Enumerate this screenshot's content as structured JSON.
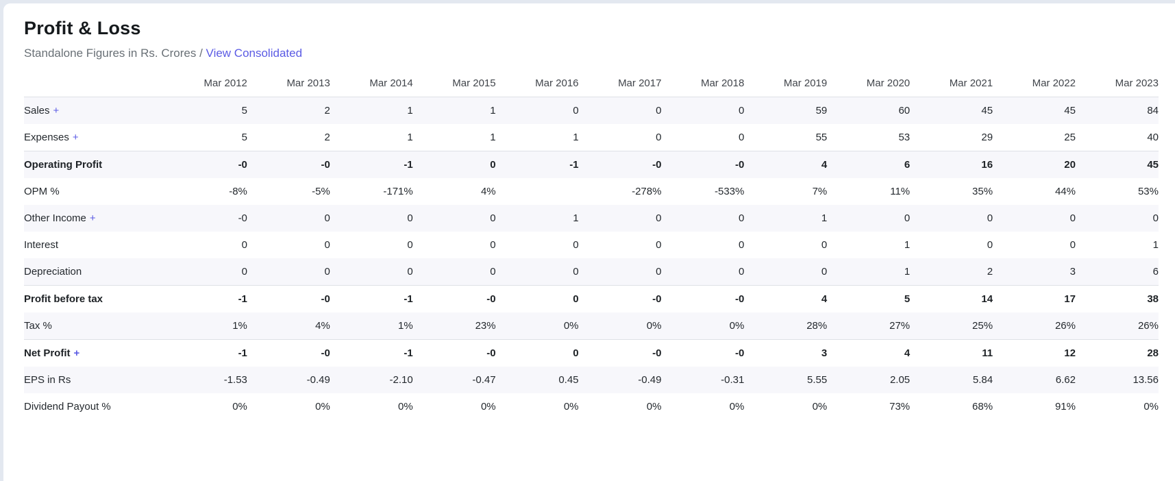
{
  "page": {
    "title": "Profit & Loss",
    "subtitle": "Standalone Figures in Rs. Crores /",
    "link_label": "View Consolidated"
  },
  "colors": {
    "accent_link": "#5b5be4",
    "card_background": "#ffffff",
    "page_background": "#e3e8f0",
    "row_stripe": "#f7f7fb",
    "border": "#dee1e6",
    "title_text": "#161a1d",
    "body_text": "#24292e",
    "subtitle_text": "#697076"
  },
  "table": {
    "expand_symbol": "+",
    "columns": [
      "Mar 2012",
      "Mar 2013",
      "Mar 2014",
      "Mar 2015",
      "Mar 2016",
      "Mar 2017",
      "Mar 2018",
      "Mar 2019",
      "Mar 2020",
      "Mar 2021",
      "Mar 2022",
      "Mar 2023"
    ],
    "rows": [
      {
        "label": "Sales",
        "expandable": true,
        "strong": false,
        "values": [
          "5",
          "2",
          "1",
          "1",
          "0",
          "0",
          "0",
          "59",
          "60",
          "45",
          "45",
          "84"
        ]
      },
      {
        "label": "Expenses",
        "expandable": true,
        "strong": false,
        "values": [
          "5",
          "2",
          "1",
          "1",
          "1",
          "0",
          "0",
          "55",
          "53",
          "29",
          "25",
          "40"
        ]
      },
      {
        "label": "Operating Profit",
        "expandable": false,
        "strong": true,
        "values": [
          "-0",
          "-0",
          "-1",
          "0",
          "-1",
          "-0",
          "-0",
          "4",
          "6",
          "16",
          "20",
          "45"
        ]
      },
      {
        "label": "OPM %",
        "expandable": false,
        "strong": false,
        "values": [
          "-8%",
          "-5%",
          "-171%",
          "4%",
          "",
          "-278%",
          "-533%",
          "7%",
          "11%",
          "35%",
          "44%",
          "53%"
        ]
      },
      {
        "label": "Other Income",
        "expandable": true,
        "strong": false,
        "values": [
          "-0",
          "0",
          "0",
          "0",
          "1",
          "0",
          "0",
          "1",
          "0",
          "0",
          "0",
          "0"
        ]
      },
      {
        "label": "Interest",
        "expandable": false,
        "strong": false,
        "values": [
          "0",
          "0",
          "0",
          "0",
          "0",
          "0",
          "0",
          "0",
          "1",
          "0",
          "0",
          "1"
        ]
      },
      {
        "label": "Depreciation",
        "expandable": false,
        "strong": false,
        "values": [
          "0",
          "0",
          "0",
          "0",
          "0",
          "0",
          "0",
          "0",
          "1",
          "2",
          "3",
          "6"
        ]
      },
      {
        "label": "Profit before tax",
        "expandable": false,
        "strong": true,
        "values": [
          "-1",
          "-0",
          "-1",
          "-0",
          "0",
          "-0",
          "-0",
          "4",
          "5",
          "14",
          "17",
          "38"
        ]
      },
      {
        "label": "Tax %",
        "expandable": false,
        "strong": false,
        "values": [
          "1%",
          "4%",
          "1%",
          "23%",
          "0%",
          "0%",
          "0%",
          "28%",
          "27%",
          "25%",
          "26%",
          "26%"
        ]
      },
      {
        "label": "Net Profit",
        "expandable": true,
        "strong": true,
        "values": [
          "-1",
          "-0",
          "-1",
          "-0",
          "0",
          "-0",
          "-0",
          "3",
          "4",
          "11",
          "12",
          "28"
        ]
      },
      {
        "label": "EPS in Rs",
        "expandable": false,
        "strong": false,
        "values": [
          "-1.53",
          "-0.49",
          "-2.10",
          "-0.47",
          "0.45",
          "-0.49",
          "-0.31",
          "5.55",
          "2.05",
          "5.84",
          "6.62",
          "13.56"
        ]
      },
      {
        "label": "Dividend Payout %",
        "expandable": false,
        "strong": false,
        "values": [
          "0%",
          "0%",
          "0%",
          "0%",
          "0%",
          "0%",
          "0%",
          "0%",
          "73%",
          "68%",
          "91%",
          "0%"
        ]
      }
    ]
  },
  "chart_data": {
    "type": "table",
    "title": "Profit & Loss",
    "categories": [
      "Mar 2012",
      "Mar 2013",
      "Mar 2014",
      "Mar 2015",
      "Mar 2016",
      "Mar 2017",
      "Mar 2018",
      "Mar 2019",
      "Mar 2020",
      "Mar 2021",
      "Mar 2022",
      "Mar 2023"
    ],
    "series": [
      {
        "name": "Sales",
        "values": [
          5,
          2,
          1,
          1,
          0,
          0,
          0,
          59,
          60,
          45,
          45,
          84
        ]
      },
      {
        "name": "Expenses",
        "values": [
          5,
          2,
          1,
          1,
          1,
          0,
          0,
          55,
          53,
          29,
          25,
          40
        ]
      },
      {
        "name": "Operating Profit",
        "values": [
          0,
          0,
          -1,
          0,
          -1,
          0,
          0,
          4,
          6,
          16,
          20,
          45
        ]
      },
      {
        "name": "OPM %",
        "values": [
          -8,
          -5,
          -171,
          4,
          null,
          -278,
          -533,
          7,
          11,
          35,
          44,
          53
        ]
      },
      {
        "name": "Other Income",
        "values": [
          0,
          0,
          0,
          0,
          1,
          0,
          0,
          1,
          0,
          0,
          0,
          0
        ]
      },
      {
        "name": "Interest",
        "values": [
          0,
          0,
          0,
          0,
          0,
          0,
          0,
          0,
          1,
          0,
          0,
          1
        ]
      },
      {
        "name": "Depreciation",
        "values": [
          0,
          0,
          0,
          0,
          0,
          0,
          0,
          0,
          1,
          2,
          3,
          6
        ]
      },
      {
        "name": "Profit before tax",
        "values": [
          -1,
          0,
          -1,
          0,
          0,
          0,
          0,
          4,
          5,
          14,
          17,
          38
        ]
      },
      {
        "name": "Tax %",
        "values": [
          1,
          4,
          1,
          23,
          0,
          0,
          0,
          28,
          27,
          25,
          26,
          26
        ]
      },
      {
        "name": "Net Profit",
        "values": [
          -1,
          0,
          -1,
          0,
          0,
          0,
          0,
          3,
          4,
          11,
          12,
          28
        ]
      },
      {
        "name": "EPS in Rs",
        "values": [
          -1.53,
          -0.49,
          -2.1,
          -0.47,
          0.45,
          -0.49,
          -0.31,
          5.55,
          2.05,
          5.84,
          6.62,
          13.56
        ]
      },
      {
        "name": "Dividend Payout %",
        "values": [
          0,
          0,
          0,
          0,
          0,
          0,
          0,
          0,
          73,
          68,
          91,
          0
        ]
      }
    ]
  }
}
